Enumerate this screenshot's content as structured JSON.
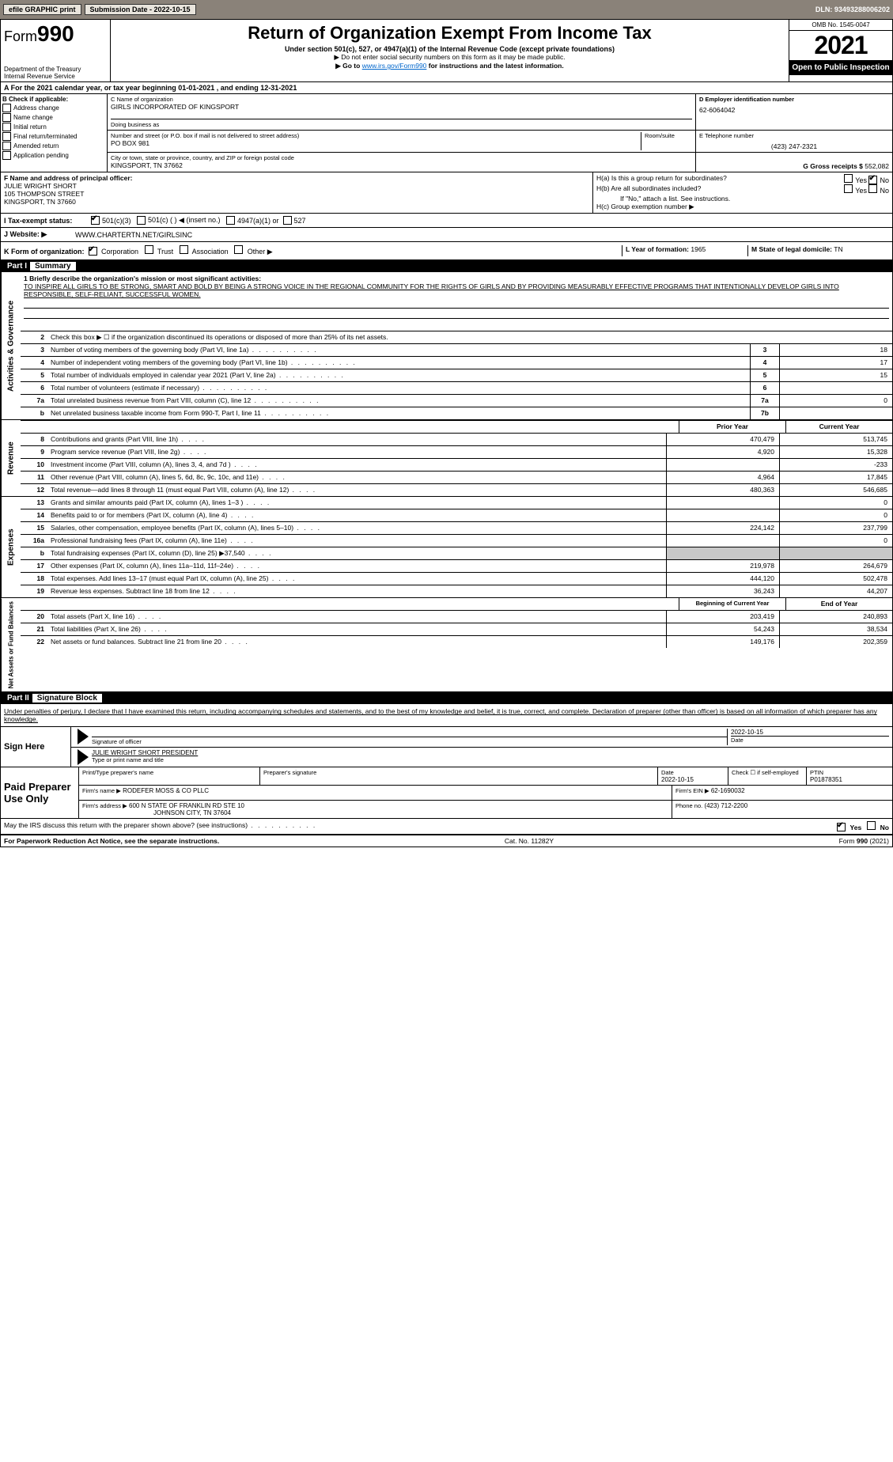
{
  "topbar": {
    "efile_label": "efile GRAPHIC print",
    "submission_label": "Submission Date - 2022-10-15",
    "dln": "DLN: 93493288006202"
  },
  "header": {
    "form_label": "Form",
    "form_num": "990",
    "dept": "Department of the Treasury",
    "irs": "Internal Revenue Service",
    "title": "Return of Organization Exempt From Income Tax",
    "subtitle": "Under section 501(c), 527, or 4947(a)(1) of the Internal Revenue Code (except private foundations)",
    "ssn_note": "▶ Do not enter social security numbers on this form as it may be made public.",
    "goto": "▶ Go to ",
    "goto_link": "www.irs.gov/Form990",
    "goto_after": " for instructions and the latest information.",
    "omb": "OMB No. 1545-0047",
    "year": "2021",
    "open": "Open to Public Inspection"
  },
  "a": {
    "text": "A For the 2021 calendar year, or tax year beginning 01-01-2021    , and ending 12-31-2021"
  },
  "b": {
    "label": "B Check if applicable:",
    "opts": [
      "Address change",
      "Name change",
      "Initial return",
      "Final return/terminated",
      "Amended return",
      "Application pending"
    ]
  },
  "c": {
    "name_label": "C Name of organization",
    "name": "GIRLS INCORPORATED OF KINGSPORT",
    "dba_label": "Doing business as",
    "dba": "",
    "addr_label": "Number and street (or P.O. box if mail is not delivered to street address)",
    "room_label": "Room/suite",
    "addr": "PO BOX 981",
    "city_label": "City or town, state or province, country, and ZIP or foreign postal code",
    "city": "KINGSPORT, TN  37662"
  },
  "d": {
    "label": "D Employer identification number",
    "val": "62-6064042"
  },
  "e": {
    "label": "E Telephone number",
    "val": "(423) 247-2321"
  },
  "g": {
    "label": "G Gross receipts $",
    "val": "552,082"
  },
  "f": {
    "label": "F Name and address of principal officer:",
    "name": "JULIE WRIGHT SHORT",
    "addr1": "105 THOMPSON STREET",
    "addr2": "KINGSPORT, TN 37660"
  },
  "h": {
    "a_label": "H(a)  Is this a group return for subordinates?",
    "b_label": "H(b)  Are all subordinates included?",
    "b_note": "If \"No,\" attach a list. See instructions.",
    "c_label": "H(c)  Group exemption number ▶"
  },
  "i": {
    "label": "I   Tax-exempt status:",
    "opt1": "501(c)(3)",
    "opt2": "501(c) (   ) ◀ (insert no.)",
    "opt3": "4947(a)(1) or",
    "opt4": "527"
  },
  "j": {
    "label": "J   Website: ▶",
    "val": "WWW.CHARTERTN.NET/GIRLSINC"
  },
  "k": {
    "label": "K Form of organization:",
    "opts": [
      "Corporation",
      "Trust",
      "Association",
      "Other ▶"
    ]
  },
  "l": {
    "label": "L Year of formation:",
    "val": "1965"
  },
  "m": {
    "label": "M State of legal domicile:",
    "val": "TN"
  },
  "parts": {
    "p1": "Part I",
    "p1_title": "Summary",
    "p2": "Part II",
    "p2_title": "Signature Block"
  },
  "summary": {
    "side1": "Activities & Governance",
    "side2": "Revenue",
    "side3": "Expenses",
    "side4": "Net Assets or Fund Balances",
    "line1_label": "1  Briefly describe the organization's mission or most significant activities:",
    "mission": "TO INSPIRE ALL GIRLS TO BE STRONG, SMART AND BOLD BY BEING A STRONG VOICE IN THE REGIONAL COMMUNITY FOR THE RIGHTS OF GIRLS AND BY PROVIDING MEASURABLY EFFECTIVE PROGRAMS THAT INTENTIONALLY DEVELOP GIRLS INTO RESPONSIBLE, SELF-RELIANT, SUCCESSFUL WOMEN.",
    "line2": "Check this box ▶ ☐  if the organization discontinued its operations or disposed of more than 25% of its net assets.",
    "lines_ag": [
      {
        "n": "3",
        "t": "Number of voting members of the governing body (Part VI, line 1a)",
        "box": "3",
        "v": "18"
      },
      {
        "n": "4",
        "t": "Number of independent voting members of the governing body (Part VI, line 1b)",
        "box": "4",
        "v": "17"
      },
      {
        "n": "5",
        "t": "Total number of individuals employed in calendar year 2021 (Part V, line 2a)",
        "box": "5",
        "v": "15"
      },
      {
        "n": "6",
        "t": "Total number of volunteers (estimate if necessary)",
        "box": "6",
        "v": ""
      },
      {
        "n": "7a",
        "t": "Total unrelated business revenue from Part VIII, column (C), line 12",
        "box": "7a",
        "v": "0"
      },
      {
        "n": "b",
        "t": "Net unrelated business taxable income from Form 990-T, Part I, line 11",
        "box": "7b",
        "v": ""
      }
    ],
    "col_prior": "Prior Year",
    "col_current": "Current Year",
    "lines_rev": [
      {
        "n": "8",
        "t": "Contributions and grants (Part VIII, line 1h)",
        "p": "470,479",
        "c": "513,745"
      },
      {
        "n": "9",
        "t": "Program service revenue (Part VIII, line 2g)",
        "p": "4,920",
        "c": "15,328"
      },
      {
        "n": "10",
        "t": "Investment income (Part VIII, column (A), lines 3, 4, and 7d )",
        "p": "",
        "c": "-233"
      },
      {
        "n": "11",
        "t": "Other revenue (Part VIII, column (A), lines 5, 6d, 8c, 9c, 10c, and 11e)",
        "p": "4,964",
        "c": "17,845"
      },
      {
        "n": "12",
        "t": "Total revenue—add lines 8 through 11 (must equal Part VIII, column (A), line 12)",
        "p": "480,363",
        "c": "546,685"
      }
    ],
    "lines_exp": [
      {
        "n": "13",
        "t": "Grants and similar amounts paid (Part IX, column (A), lines 1–3 )",
        "p": "",
        "c": "0"
      },
      {
        "n": "14",
        "t": "Benefits paid to or for members (Part IX, column (A), line 4)",
        "p": "",
        "c": "0"
      },
      {
        "n": "15",
        "t": "Salaries, other compensation, employee benefits (Part IX, column (A), lines 5–10)",
        "p": "224,142",
        "c": "237,799"
      },
      {
        "n": "16a",
        "t": "Professional fundraising fees (Part IX, column (A), line 11e)",
        "p": "",
        "c": "0"
      },
      {
        "n": "b",
        "t": "Total fundraising expenses (Part IX, column (D), line 25) ▶37,540",
        "p": "SHADE",
        "c": "SHADE"
      },
      {
        "n": "17",
        "t": "Other expenses (Part IX, column (A), lines 11a–11d, 11f–24e)",
        "p": "219,978",
        "c": "264,679"
      },
      {
        "n": "18",
        "t": "Total expenses. Add lines 13–17 (must equal Part IX, column (A), line 25)",
        "p": "444,120",
        "c": "502,478"
      },
      {
        "n": "19",
        "t": "Revenue less expenses. Subtract line 18 from line 12",
        "p": "36,243",
        "c": "44,207"
      }
    ],
    "col_begin": "Beginning of Current Year",
    "col_end": "End of Year",
    "lines_net": [
      {
        "n": "20",
        "t": "Total assets (Part X, line 16)",
        "p": "203,419",
        "c": "240,893"
      },
      {
        "n": "21",
        "t": "Total liabilities (Part X, line 26)",
        "p": "54,243",
        "c": "38,534"
      },
      {
        "n": "22",
        "t": "Net assets or fund balances. Subtract line 21 from line 20",
        "p": "149,176",
        "c": "202,359"
      }
    ]
  },
  "sig": {
    "intro": "Under penalties of perjury, I declare that I have examined this return, including accompanying schedules and statements, and to the best of my knowledge and belief, it is true, correct, and complete. Declaration of preparer (other than officer) is based on all information of which preparer has any knowledge.",
    "sign_here": "Sign Here",
    "sig_officer": "Signature of officer",
    "date_label": "Date",
    "date_val": "2022-10-15",
    "name": "JULIE WRIGHT SHORT PRESIDENT",
    "name_label": "Type or print name and title"
  },
  "prep": {
    "title": "Paid Preparer Use Only",
    "r1": {
      "c1": "Print/Type preparer's name",
      "c2": "Preparer's signature",
      "c3": "Date",
      "c3v": "2022-10-15",
      "c4": "Check ☐ if self-employed",
      "c5": "PTIN",
      "c5v": "P01878351"
    },
    "r2": {
      "label": "Firm's name    ▶",
      "val": "RODEFER MOSS & CO PLLC",
      "ein_label": "Firm's EIN ▶",
      "ein": "62-1690032"
    },
    "r3": {
      "label": "Firm's address ▶",
      "val": "600 N STATE OF FRANKLIN RD STE 10",
      "phone_label": "Phone no.",
      "phone": "(423) 712-2200"
    },
    "r3b": {
      "city": "JOHNSON CITY, TN  37604"
    }
  },
  "discuss": {
    "text": "May the IRS discuss this return with the preparer shown above? (see instructions)",
    "yes": "Yes",
    "no": "No"
  },
  "footer": {
    "left": "For Paperwork Reduction Act Notice, see the separate instructions.",
    "mid": "Cat. No. 11282Y",
    "right": "Form 990 (2021)"
  }
}
